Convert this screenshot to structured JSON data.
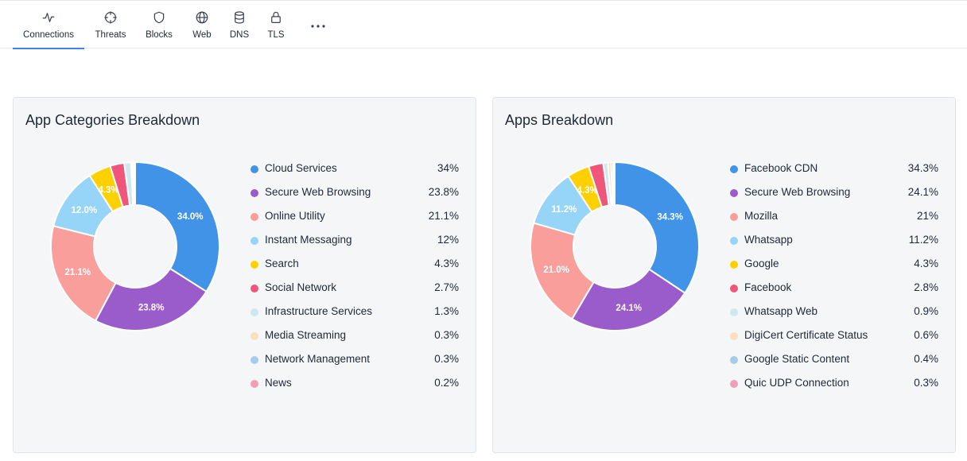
{
  "nav": {
    "tabs": [
      {
        "label": "Connections",
        "icon": "activity-icon",
        "active": true
      },
      {
        "label": "Threats",
        "icon": "crosshair-icon",
        "active": false
      },
      {
        "label": "Blocks",
        "icon": "shield-icon",
        "active": false
      },
      {
        "label": "Web",
        "icon": "globe-icon",
        "active": false
      },
      {
        "label": "DNS",
        "icon": "database-icon",
        "active": false
      },
      {
        "label": "TLS",
        "icon": "lock-icon",
        "active": false
      }
    ],
    "more_icon": "more-horizontal-icon"
  },
  "colors": {
    "accent": "#3b82f6",
    "palette": [
      "#4193e8",
      "#9a5bcb",
      "#fa9e9b",
      "#96d4f8",
      "#ffd000",
      "#f0557a",
      "#d1e7ef",
      "#fce0bd",
      "#a8cce8",
      "#f19fb6"
    ]
  },
  "cards": [
    {
      "title": "App Categories Breakdown",
      "chart_data": {
        "type": "pie",
        "categories": [
          "Cloud Services",
          "Secure Web Browsing",
          "Online Utility",
          "Instant Messaging",
          "Search",
          "Social Network",
          "Infrastructure Services",
          "Media Streaming",
          "Network Management",
          "News"
        ],
        "values": [
          34,
          23.8,
          21.1,
          12,
          4.3,
          2.7,
          1.3,
          0.3,
          0.3,
          0.2
        ],
        "value_labels": [
          "34%",
          "23.8%",
          "21.1%",
          "12%",
          "4.3%",
          "2.7%",
          "1.3%",
          "0.3%",
          "0.3%",
          "0.2%"
        ],
        "slice_labels": [
          "34.0%",
          "23.8%",
          "21.1%",
          "12.0%",
          "4.3%",
          "",
          "",
          "",
          "",
          ""
        ],
        "legend_position": "right"
      }
    },
    {
      "title": "Apps Breakdown",
      "chart_data": {
        "type": "pie",
        "categories": [
          "Facebook CDN",
          "Secure Web Browsing",
          "Mozilla",
          "Whatsapp",
          "Google",
          "Facebook",
          "Whatsapp Web",
          "DigiCert Certificate Status",
          "Google Static Content",
          "Quic UDP Connection"
        ],
        "values": [
          34.3,
          24.1,
          21,
          11.2,
          4.3,
          2.8,
          0.9,
          0.6,
          0.4,
          0.3
        ],
        "value_labels": [
          "34.3%",
          "24.1%",
          "21%",
          "11.2%",
          "4.3%",
          "2.8%",
          "0.9%",
          "0.6%",
          "0.4%",
          "0.3%"
        ],
        "slice_labels": [
          "34.3%",
          "24.1%",
          "21.0%",
          "11.2%",
          "4.3%",
          "",
          "",
          "",
          "",
          ""
        ],
        "legend_position": "right"
      }
    }
  ]
}
